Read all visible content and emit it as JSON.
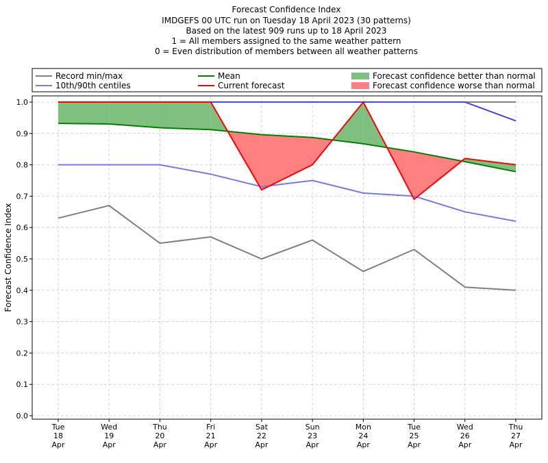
{
  "chart_data": {
    "type": "line",
    "title_lines": [
      "Forecast Confidence Index",
      "IMDGEFS 00 UTC run on Tuesday 18 April 2023 (30 patterns)",
      "Based on the latest 909 runs up to 18 April 2023",
      "1 = All members assigned to the same weather pattern",
      "0 = Even distribution of members between all weather patterns"
    ],
    "ylabel": "Forecast Confidence Index",
    "ylim": [
      0,
      1.0
    ],
    "yticks": [
      "0.0",
      "0.1",
      "0.2",
      "0.3",
      "0.4",
      "0.5",
      "0.6",
      "0.7",
      "0.8",
      "0.9",
      "1.0"
    ],
    "categories": [
      [
        "Tue",
        "18",
        "Apr"
      ],
      [
        "Wed",
        "19",
        "Apr"
      ],
      [
        "Thu",
        "20",
        "Apr"
      ],
      [
        "Fri",
        "21",
        "Apr"
      ],
      [
        "Sat",
        "22",
        "Apr"
      ],
      [
        "Sun",
        "23",
        "Apr"
      ],
      [
        "Mon",
        "24",
        "Apr"
      ],
      [
        "Tue",
        "25",
        "Apr"
      ],
      [
        "Wed",
        "26",
        "Apr"
      ],
      [
        "Thu",
        "27",
        "Apr"
      ]
    ],
    "grid": true,
    "series": [
      {
        "name": "Record min/max",
        "key": "record_min",
        "color": "#808080",
        "values": [
          0.63,
          0.67,
          0.55,
          0.57,
          0.5,
          0.56,
          0.46,
          0.53,
          0.41,
          0.4
        ]
      },
      {
        "key": "record_max",
        "color": "#808080",
        "values": [
          1.0,
          1.0,
          1.0,
          1.0,
          1.0,
          1.0,
          1.0,
          1.0,
          1.0,
          1.0
        ]
      },
      {
        "name": "10th/90th centiles",
        "key": "p10",
        "color": "#7777ee",
        "values": [
          0.8,
          0.8,
          0.8,
          0.77,
          0.73,
          0.75,
          0.71,
          0.7,
          0.65,
          0.62
        ]
      },
      {
        "key": "p90",
        "color": "#4444ee",
        "values": [
          1.0,
          1.0,
          1.0,
          1.0,
          1.0,
          1.0,
          1.0,
          1.0,
          1.0,
          0.94
        ]
      },
      {
        "name": "Mean",
        "key": "mean",
        "color": "#008000",
        "values": [
          0.932,
          0.93,
          0.918,
          0.912,
          0.896,
          0.887,
          0.867,
          0.841,
          0.81,
          0.778
        ]
      },
      {
        "name": "Current forecast",
        "key": "current",
        "color": "#ff0000",
        "values": [
          1.0,
          1.0,
          1.0,
          1.0,
          0.72,
          0.8,
          1.0,
          0.69,
          0.82,
          0.8
        ]
      }
    ],
    "fills": [
      {
        "name": "Forecast confidence better than normal",
        "color": "#7fbf7f"
      },
      {
        "name": "Forecast confidence worse than normal",
        "color": "#ff8080"
      }
    ],
    "legend": {
      "placement": "top",
      "entries": [
        {
          "label": "Record min/max",
          "color": "#808080",
          "kind": "line"
        },
        {
          "label": "10th/90th centiles",
          "color": "#7777ee",
          "kind": "line"
        },
        {
          "label": "Mean",
          "color": "#008000",
          "kind": "line"
        },
        {
          "label": "Current forecast",
          "color": "#ff0000",
          "kind": "line"
        },
        {
          "label": "Forecast confidence better than normal",
          "color": "#7fbf7f",
          "kind": "patch"
        },
        {
          "label": "Forecast confidence worse than normal",
          "color": "#ff8080",
          "kind": "patch"
        }
      ]
    }
  }
}
